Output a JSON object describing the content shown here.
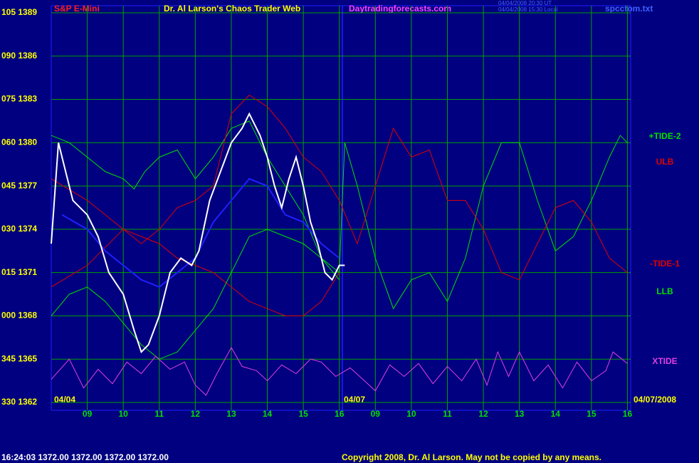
{
  "chart_data": {
    "type": "line",
    "title": "Dr. Al Larson's Chaos Trader Web",
    "symbol": "S&P E-Mini",
    "site": "Daytradingforecasts.com",
    "timestamps": [
      "04/04/2008 20:30 UT",
      "04/04/2008 15:30 Local"
    ],
    "file": "spcctom.txt",
    "date_labels": [
      "04/04",
      "04/07",
      "04/07/2008"
    ],
    "status": "16:24:03  1372.00  1372.00  1372.00  1372.00",
    "copyright": "Copyright 2008, Dr. Al Larson. May not be copied by any means.",
    "xlim": [
      0,
      16.09
    ],
    "xticks": [
      {
        "value": 1,
        "label": "09"
      },
      {
        "value": 2,
        "label": "10"
      },
      {
        "value": 3,
        "label": "11"
      },
      {
        "value": 4,
        "label": "12"
      },
      {
        "value": 5,
        "label": "13"
      },
      {
        "value": 6,
        "label": "14"
      },
      {
        "value": 7,
        "label": "15"
      },
      {
        "value": 8,
        "label": "16"
      },
      {
        "value": 9,
        "label": "09"
      },
      {
        "value": 10,
        "label": "10"
      },
      {
        "value": 11,
        "label": "11"
      },
      {
        "value": 12,
        "label": "12"
      },
      {
        "value": 13,
        "label": "13"
      },
      {
        "value": 14,
        "label": "14"
      },
      {
        "value": 15,
        "label": "15"
      },
      {
        "value": 16,
        "label": "16"
      }
    ],
    "ylim": [
      1362,
      1389
    ],
    "yticks": [
      {
        "value": 1389,
        "label": "105 1389"
      },
      {
        "value": 1386,
        "label": "090 1386"
      },
      {
        "value": 1383,
        "label": "075 1383"
      },
      {
        "value": 1380,
        "label": "060 1380"
      },
      {
        "value": 1377,
        "label": "045 1377"
      },
      {
        "value": 1374,
        "label": "030 1374"
      },
      {
        "value": 1371,
        "label": "015 1371"
      },
      {
        "value": 1368,
        "label": "000 1368"
      },
      {
        "value": 1365,
        "label": "345 1365"
      },
      {
        "value": 1362,
        "label": "330 1362"
      }
    ],
    "grid": true,
    "series": [
      {
        "name": "+TIDE-2",
        "color": "#00e000",
        "x": [
          0,
          0.5,
          1,
          1.5,
          2,
          2.3,
          2.6,
          3,
          3.5,
          4,
          4.5,
          5,
          5.5,
          6,
          6.5,
          7,
          7.5,
          8,
          8.15,
          8.5,
          9,
          9.5,
          10,
          10.5,
          11,
          11.5,
          12,
          12.5,
          13,
          13.5,
          14,
          14.5,
          15,
          15.5,
          15.8,
          16
        ],
        "values": [
          1380.5,
          1380,
          1379,
          1378,
          1377.5,
          1376.8,
          1378,
          1379,
          1379.5,
          1377.5,
          1379,
          1381,
          1381.5,
          1379,
          1377,
          1375,
          1372,
          1371,
          1380,
          1377,
          1372,
          1368.5,
          1370.5,
          1371,
          1369,
          1372,
          1377,
          1380,
          1380,
          1376,
          1372.5,
          1373.5,
          1376,
          1379,
          1380.5,
          1380
        ]
      },
      {
        "name": "ULB",
        "color": "#e00000",
        "x": [
          0,
          1,
          2,
          2.5,
          3,
          3.5,
          4,
          4.5,
          5,
          5.5,
          6,
          6.5,
          7,
          7.5,
          8
        ],
        "values": [
          1370,
          1371.5,
          1374,
          1373.5,
          1373,
          1372,
          1371.5,
          1371,
          1370,
          1369,
          1368.5,
          1368,
          1368,
          1369,
          1371
        ]
      },
      {
        "name": "-TIDE-1",
        "color": "#e00000",
        "x": [
          0,
          1,
          2,
          2.5,
          3,
          3.5,
          4,
          4.5,
          5,
          5.5,
          6,
          6.5,
          7,
          7.5,
          8,
          8.5,
          9,
          9.5,
          10,
          10.5,
          11,
          11.5,
          12,
          12.5,
          13,
          13.5,
          14,
          14.5,
          15,
          15.5,
          16
        ],
        "values": [
          1377.5,
          1376,
          1374,
          1373,
          1374,
          1375.5,
          1376,
          1377,
          1382,
          1383.3,
          1382.5,
          1381,
          1379,
          1378,
          1376,
          1373,
          1377,
          1381,
          1379,
          1379.5,
          1376,
          1376,
          1374,
          1371,
          1370.5,
          1373,
          1375.5,
          1376,
          1374.5,
          1372,
          1371
        ]
      },
      {
        "name": "LLB",
        "color": "#00e000",
        "x": [
          0,
          0.5,
          1,
          1.5,
          2,
          2.5,
          3,
          3.5,
          4,
          4.5,
          5,
          5.5,
          6,
          6.5,
          7,
          7.5,
          8
        ],
        "values": [
          1368,
          1369.5,
          1370,
          1369,
          1367.5,
          1366,
          1365,
          1365.5,
          1367,
          1368.5,
          1371,
          1373.5,
          1374,
          1373.5,
          1373,
          1372,
          1370.5
        ]
      },
      {
        "name": "XTIDE",
        "color": "#e040e0",
        "x": [
          0,
          0.5,
          0.9,
          1.3,
          1.7,
          2.1,
          2.5,
          2.9,
          3.3,
          3.7,
          4,
          4.3,
          4.6,
          5,
          5.3,
          5.7,
          6,
          6.4,
          6.8,
          7.2,
          7.5,
          7.9,
          8.3,
          8.7,
          9,
          9.4,
          9.8,
          10.2,
          10.6,
          11,
          11.4,
          11.8,
          12.1,
          12.4,
          12.7,
          13,
          13.4,
          13.8,
          14.2,
          14.6,
          15,
          15.4,
          15.6,
          16
        ],
        "values": [
          1363.6,
          1365,
          1363,
          1364.3,
          1363.3,
          1364.8,
          1364,
          1365.2,
          1364.3,
          1364.8,
          1363.2,
          1362.5,
          1364,
          1365.8,
          1364.5,
          1364.2,
          1363.5,
          1364.6,
          1364,
          1365,
          1364.8,
          1363.8,
          1364.4,
          1363.5,
          1362.8,
          1364.6,
          1363.8,
          1364.7,
          1363.3,
          1364.5,
          1363.5,
          1365,
          1363.2,
          1365.5,
          1363.8,
          1365.5,
          1363.5,
          1364.6,
          1363,
          1364.8,
          1363.5,
          1364.2,
          1365.5,
          1364.7
        ]
      },
      {
        "color": "#2020ff",
        "x": [
          0.3,
          1,
          1.5,
          2,
          2.5,
          3,
          3.5,
          4,
          4.5,
          5,
          5.5,
          6,
          6.5,
          7,
          7.5,
          8
        ],
        "values": [
          1375,
          1374,
          1372.5,
          1371.5,
          1370.5,
          1370,
          1371,
          1372,
          1374.5,
          1376,
          1377.5,
          1377,
          1375,
          1374.5,
          1373,
          1372
        ]
      },
      {
        "color": "#ffffff",
        "x": [
          0,
          0.2,
          0.4,
          0.6,
          1,
          1.3,
          1.6,
          2,
          2.3,
          2.5,
          2.7,
          3,
          3.3,
          3.6,
          3.9,
          4.1,
          4.4,
          4.7,
          5,
          5.3,
          5.5,
          5.8,
          6,
          6.2,
          6.4,
          6.6,
          6.8,
          7,
          7.2,
          7.4,
          7.6,
          7.8,
          8,
          8.15
        ],
        "values": [
          1373,
          1380,
          1378,
          1376,
          1375,
          1373.5,
          1371,
          1369.5,
          1367,
          1365.5,
          1366,
          1368,
          1371,
          1372,
          1371.5,
          1372.5,
          1376,
          1378,
          1380,
          1381,
          1382,
          1380.5,
          1379,
          1377,
          1375.5,
          1377.5,
          1379,
          1377,
          1374.5,
          1373,
          1371,
          1370.5,
          1371.5,
          1371.5
        ]
      }
    ]
  }
}
